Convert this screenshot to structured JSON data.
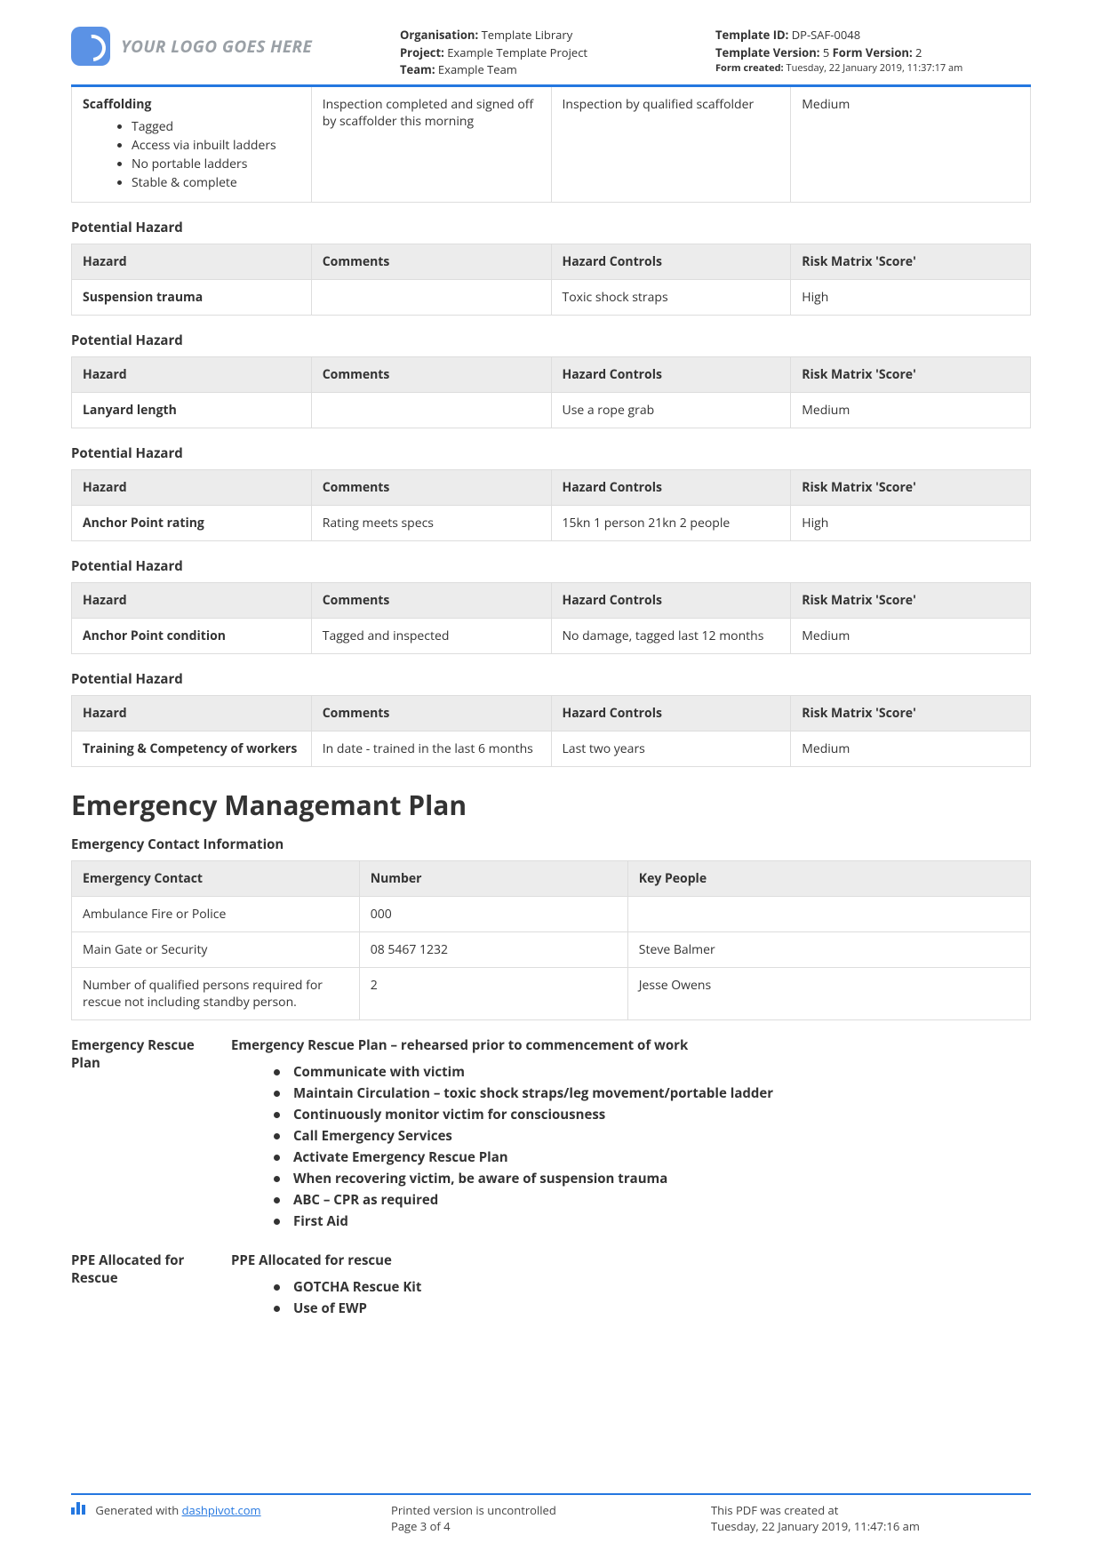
{
  "header": {
    "logo_placeholder": "YOUR LOGO GOES HERE",
    "org_label": "Organisation:",
    "org_value": " Template Library",
    "project_label": "Project:",
    "project_value": " Example Template Project",
    "team_label": "Team:",
    "team_value": " Example Team",
    "tid_label": "Template ID:",
    "tid_value": " DP-SAF-0048",
    "tver_label": "Template Version:",
    "tver_value": " 5 ",
    "fver_label": "Form Version:",
    "fver_value": " 2",
    "fcreated_label": "Form created:",
    "fcreated_value": " Tuesday, 22 January 2019, 11:37:17 am"
  },
  "first_row": {
    "hazard_title": "Scaffolding",
    "bullets": [
      "Tagged",
      "Access via inbuilt ladders",
      "No portable ladders",
      "Stable & complete"
    ],
    "comments": "Inspection completed and signed off by scaffolder this morning",
    "controls": "Inspection by qualified scaffolder",
    "score": "Medium"
  },
  "hazard_cols": {
    "c1": "Hazard",
    "c2": "Comments",
    "c3": "Hazard Controls",
    "c4": "Risk Matrix 'Score'"
  },
  "hazards": [
    {
      "title": "Potential Hazard",
      "hazard": "Suspension trauma",
      "comments": "",
      "controls": "Toxic shock straps",
      "score": "High"
    },
    {
      "title": "Potential Hazard",
      "hazard": "Lanyard length",
      "comments": "",
      "controls": "Use a rope grab",
      "score": "Medium"
    },
    {
      "title": "Potential Hazard",
      "hazard": "Anchor Point rating",
      "comments": "Rating meets specs",
      "controls": "15kn 1 person 21kn 2 people",
      "score": "High"
    },
    {
      "title": "Potential Hazard",
      "hazard": "Anchor Point condition",
      "comments": "Tagged and inspected",
      "controls": "No damage, tagged last 12 months",
      "score": "Medium"
    },
    {
      "title": "Potential Hazard",
      "hazard": "Training & Competency of workers",
      "comments": "In date - trained in the last 6 months",
      "controls": "Last two years",
      "score": "Medium"
    }
  ],
  "emp_heading": "Emergency Managemant Plan",
  "eci_title": "Emergency Contact Information",
  "eci_cols": {
    "c1": "Emergency Contact",
    "c2": "Number",
    "c3": "Key People"
  },
  "eci_rows": [
    {
      "c1": "Ambulance Fire or Police",
      "c2": "000",
      "c3": ""
    },
    {
      "c1": "Main Gate or Security",
      "c2": "08 5467 1232",
      "c3": "Steve Balmer"
    },
    {
      "c1": "Number of qualified persons required for rescue not including standby person.",
      "c2": "2",
      "c3": "Jesse Owens"
    }
  ],
  "rescue": {
    "left": "Emergency Rescue Plan",
    "title": "Emergency Rescue Plan – rehearsed prior to commencement of work",
    "items": [
      "Communicate with victim",
      "Maintain Circulation – toxic shock straps/leg movement/portable ladder",
      "Continuously monitor victim for consciousness",
      "Call Emergency Services",
      "Activate Emergency Rescue Plan",
      "When recovering victim, be aware of suspension trauma",
      "ABC – CPR as required",
      "First Aid"
    ]
  },
  "ppe": {
    "left": "PPE Allocated for Rescue",
    "title": "PPE Allocated for rescue",
    "items": [
      "GOTCHA Rescue Kit",
      "Use of EWP"
    ]
  },
  "footer": {
    "gen_prefix": "Generated with ",
    "gen_link": "dashpivot.com",
    "mid1": "Printed version is uncontrolled",
    "mid2": "Page 3 of 4",
    "r1": "This PDF was created at",
    "r2": "Tuesday, 22 January 2019, 11:47:16 am"
  }
}
